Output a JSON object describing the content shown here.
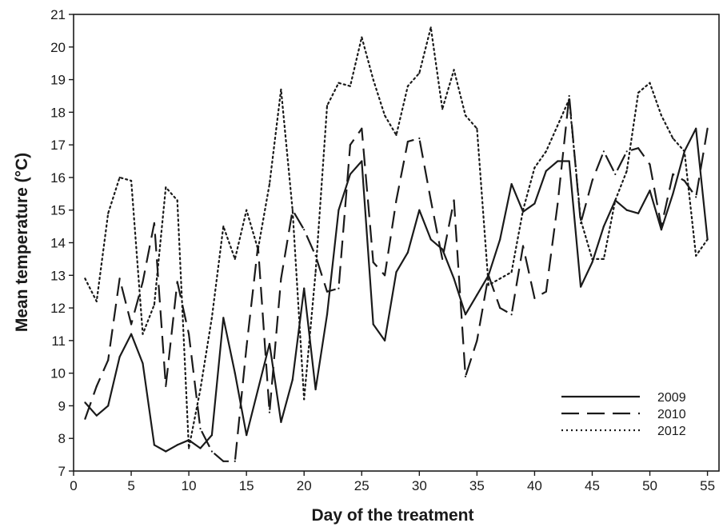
{
  "chart_data": {
    "type": "line",
    "title": "",
    "xlabel": "Day of the treatment",
    "ylabel": "Mean temperature (°C)",
    "xlim": [
      0,
      56
    ],
    "ylim": [
      7,
      21
    ],
    "xticks": [
      0,
      5,
      10,
      15,
      20,
      25,
      30,
      35,
      40,
      45,
      50,
      55
    ],
    "yticks": [
      7,
      8,
      9,
      10,
      11,
      12,
      13,
      14,
      15,
      16,
      17,
      18,
      19,
      20,
      21
    ],
    "grid": false,
    "legend_position": "bottom-right",
    "series": [
      {
        "name": "2009",
        "style": "solid",
        "color": "#1a1a1a",
        "x": [
          1,
          2,
          3,
          4,
          5,
          6,
          7,
          8,
          9,
          10,
          11,
          12,
          13,
          14,
          15,
          16,
          17,
          18,
          19,
          20,
          21,
          22,
          23,
          24,
          25,
          26,
          27,
          28,
          29,
          30,
          31,
          32,
          33,
          34,
          35,
          36,
          37,
          38,
          39,
          40,
          41,
          42,
          43,
          44,
          45,
          46,
          47,
          48,
          49,
          50,
          51,
          52,
          53,
          54,
          55
        ],
        "y": [
          9.1,
          8.7,
          9.0,
          10.5,
          11.2,
          10.3,
          7.8,
          7.6,
          7.8,
          7.95,
          7.7,
          8.1,
          11.7,
          10.0,
          8.1,
          9.5,
          10.9,
          8.5,
          9.8,
          12.6,
          9.5,
          11.8,
          15.0,
          16.1,
          16.5,
          11.5,
          11.0,
          13.1,
          13.7,
          15.0,
          14.1,
          13.8,
          12.9,
          11.8,
          12.4,
          13.0,
          14.1,
          15.8,
          14.95,
          15.2,
          16.2,
          16.5,
          16.5,
          12.65,
          13.4,
          14.5,
          15.3,
          15.0,
          14.9,
          15.6,
          14.4,
          15.5,
          16.8,
          17.5,
          14.1
        ]
      },
      {
        "name": "2010",
        "style": "dashed",
        "color": "#1a1a1a",
        "x": [
          1,
          2,
          3,
          4,
          5,
          6,
          7,
          8,
          9,
          10,
          11,
          12,
          13,
          14,
          15,
          16,
          17,
          18,
          19,
          20,
          21,
          22,
          23,
          24,
          25,
          26,
          27,
          28,
          29,
          30,
          31,
          32,
          33,
          34,
          35,
          36,
          37,
          38,
          39,
          40,
          41,
          42,
          43,
          44,
          45,
          46,
          47,
          48,
          49,
          50,
          51,
          52,
          53,
          54,
          55
        ],
        "y": [
          8.6,
          9.6,
          10.4,
          12.9,
          11.5,
          12.8,
          14.6,
          9.6,
          12.8,
          11.2,
          8.3,
          7.6,
          7.3,
          7.3,
          10.8,
          13.9,
          8.8,
          12.9,
          15.0,
          14.4,
          13.6,
          12.5,
          12.6,
          17.0,
          17.5,
          13.4,
          13.0,
          15.3,
          17.1,
          17.2,
          15.3,
          13.5,
          15.3,
          9.9,
          11.0,
          13.0,
          12.0,
          11.8,
          13.9,
          12.3,
          12.5,
          15.2,
          18.5,
          14.6,
          15.9,
          16.8,
          16.1,
          16.8,
          16.9,
          16.4,
          14.5,
          16.1,
          15.9,
          15.4,
          17.5
        ]
      },
      {
        "name": "2012",
        "style": "dotted",
        "color": "#1a1a1a",
        "x": [
          1,
          2,
          3,
          4,
          5,
          6,
          7,
          8,
          9,
          10,
          11,
          12,
          13,
          14,
          15,
          16,
          17,
          18,
          19,
          20,
          21,
          22,
          23,
          24,
          25,
          26,
          27,
          28,
          29,
          30,
          31,
          32,
          33,
          34,
          35,
          36,
          37,
          38,
          39,
          40,
          41,
          42,
          43,
          44,
          45,
          46,
          47,
          48,
          49,
          50,
          51,
          52,
          53,
          54,
          55
        ],
        "y": [
          12.9,
          12.2,
          14.9,
          16.0,
          15.9,
          11.2,
          12.1,
          15.7,
          15.3,
          7.7,
          9.5,
          11.7,
          14.5,
          13.5,
          15.0,
          13.8,
          15.8,
          18.7,
          15.0,
          9.2,
          13.1,
          18.2,
          18.9,
          18.8,
          20.3,
          19.0,
          17.9,
          17.3,
          18.8,
          19.2,
          20.6,
          18.1,
          19.3,
          17.9,
          17.5,
          12.7,
          12.9,
          13.1,
          15.0,
          16.3,
          16.8,
          17.6,
          18.4,
          14.7,
          13.5,
          13.5,
          15.3,
          16.2,
          18.6,
          18.9,
          17.9,
          17.2,
          16.8,
          13.6,
          14.1
        ]
      }
    ]
  }
}
